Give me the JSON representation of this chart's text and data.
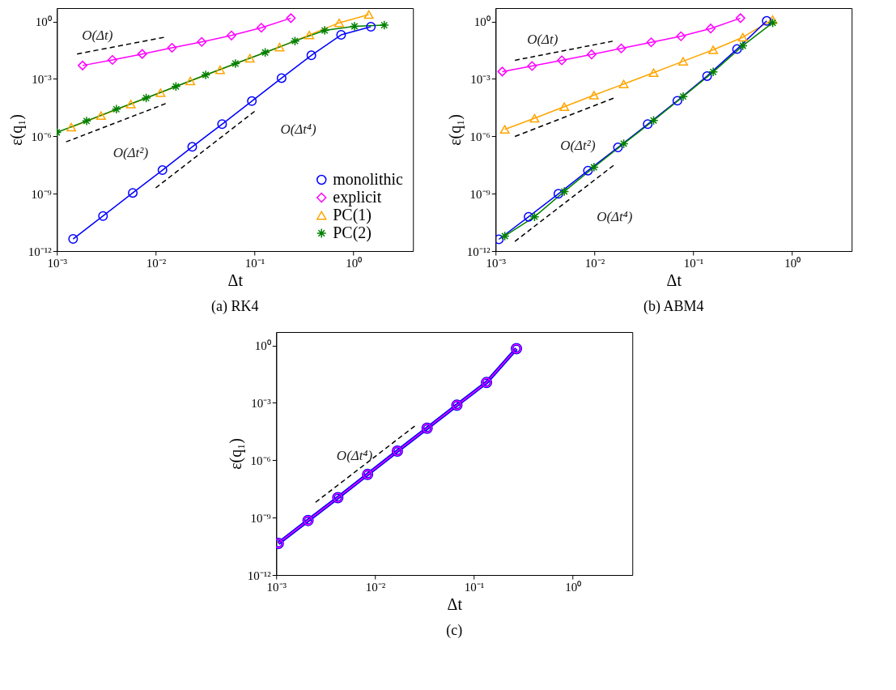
{
  "chart_data": [
    {
      "type": "line",
      "title": "(a) RK4",
      "xlabel": "Δt",
      "ylabel": "ε(q₁)",
      "log": "xy",
      "grid": false,
      "legend": "bottom right",
      "xlim": [
        0.001,
        4
      ],
      "ylim": [
        1e-12,
        5
      ],
      "xticks": [
        {
          "value": 0.001,
          "label": "10⁻³"
        },
        {
          "value": 0.01,
          "label": "10⁻²"
        },
        {
          "value": 0.1,
          "label": "10⁻¹"
        },
        {
          "value": 1,
          "label": "10⁰"
        }
      ],
      "yticks": [
        {
          "value": 1e-12,
          "label": "10⁻¹²"
        },
        {
          "value": 1e-09,
          "label": "10⁻⁹"
        },
        {
          "value": 1e-06,
          "label": "10⁻⁶"
        },
        {
          "value": 0.001,
          "label": "10⁻³"
        },
        {
          "value": 1,
          "label": "10⁰"
        }
      ],
      "series": [
        {
          "name": "monolithic",
          "color": "#0000ff",
          "marker": "circle",
          "x": [
            0.00146,
            0.00293,
            0.00586,
            0.0117,
            0.0234,
            0.0469,
            0.0938,
            0.1875,
            0.375,
            0.75,
            1.5
          ],
          "values": [
            4.3e-12,
            6.8e-11,
            1.1e-09,
            1.7e-08,
            2.8e-07,
            4.3e-06,
            6.9e-05,
            0.0011,
            0.017,
            0.2,
            0.53
          ]
        },
        {
          "name": "explicit",
          "color": "#ff00ff",
          "marker": "diamond",
          "x": [
            0.00182,
            0.00365,
            0.0073,
            0.0146,
            0.0292,
            0.0583,
            0.117,
            0.233
          ],
          "values": [
            0.005,
            0.0098,
            0.02,
            0.042,
            0.086,
            0.185,
            0.47,
            1.5
          ]
        },
        {
          "name": "PC(1)",
          "color": "#ffa500",
          "marker": "triangle",
          "x": [
            0.0014,
            0.0028,
            0.0056,
            0.0112,
            0.0224,
            0.0448,
            0.0896,
            0.179,
            0.358,
            0.717,
            1.43
          ],
          "values": [
            3e-06,
            1.2e-05,
            4.8e-05,
            0.00019,
            0.00078,
            0.003,
            0.012,
            0.046,
            0.197,
            0.85,
            2.3
          ]
        },
        {
          "name": "PC(2)",
          "color": "#008000",
          "marker": "cross",
          "x": [
            0.001,
            0.002,
            0.004,
            0.008,
            0.016,
            0.032,
            0.064,
            0.128,
            0.256,
            0.512,
            1.024,
            2.048
          ],
          "values": [
            1.6e-06,
            6.3e-06,
            2.6e-05,
            0.0001,
            0.0004,
            0.0016,
            0.0063,
            0.024,
            0.095,
            0.34,
            0.56,
            0.64
          ]
        },
        {
          "type": "line",
          "color": "#000000",
          "marker": "none",
          "line_style": "dashed",
          "x": [
            0.0016,
            0.0121
          ],
          "values": [
            0.02,
            0.148
          ]
        },
        {
          "type": "line",
          "color": "#000000",
          "marker": "none",
          "line_style": "dashed",
          "x": [
            0.00124,
            0.0126
          ],
          "values": [
            5.1e-07,
            5.1e-05
          ]
        },
        {
          "type": "line",
          "color": "#000000",
          "marker": "none",
          "line_style": "dashed",
          "x": [
            0.01,
            0.1
          ],
          "values": [
            2e-09,
            2e-05
          ]
        }
      ],
      "annotations": [
        "O(Δt)",
        "O(Δt²)",
        "O(Δt⁴)"
      ]
    },
    {
      "type": "line",
      "title": "(b) ABM4",
      "xlabel": "Δt",
      "ylabel": "ε(q₁)",
      "log": "xy",
      "grid": false,
      "xlim": [
        0.001,
        4
      ],
      "ylim": [
        1e-12,
        5
      ],
      "xticks": [
        {
          "value": 0.001,
          "label": "10⁻³"
        },
        {
          "value": 0.01,
          "label": "10⁻²"
        },
        {
          "value": 0.1,
          "label": "10⁻¹"
        },
        {
          "value": 1,
          "label": "10⁰"
        }
      ],
      "yticks": [
        {
          "value": 1e-12,
          "label": "10⁻¹²"
        },
        {
          "value": 1e-09,
          "label": "10⁻⁹"
        },
        {
          "value": 1e-06,
          "label": "10⁻⁶"
        },
        {
          "value": 0.001,
          "label": "10⁻³"
        },
        {
          "value": 1,
          "label": "10⁰"
        }
      ],
      "series": [
        {
          "color": "#ff00ff",
          "marker": "diamond",
          "x": [
            0.00117,
            0.00234,
            0.00468,
            0.00936,
            0.0187,
            0.0375,
            0.075,
            0.15,
            0.3
          ],
          "values": [
            0.0024,
            0.0047,
            0.0093,
            0.019,
            0.039,
            0.081,
            0.17,
            0.43,
            1.5
          ]
        },
        {
          "color": "#ffa500",
          "marker": "triangle",
          "x": [
            0.00124,
            0.00248,
            0.00496,
            0.0099,
            0.0198,
            0.0397,
            0.079,
            0.159,
            0.317,
            0.635
          ],
          "values": [
            2.3e-06,
            8.7e-06,
            3.5e-05,
            0.00014,
            0.00054,
            0.0021,
            0.0083,
            0.033,
            0.15,
            1.25
          ]
        },
        {
          "color": "#0000ff",
          "marker": "circle",
          "x": [
            0.00108,
            0.00216,
            0.00432,
            0.0086,
            0.0173,
            0.0346,
            0.069,
            0.138,
            0.277,
            0.553
          ],
          "values": [
            4.1e-12,
            6.2e-11,
            9.8e-10,
            1.6e-08,
            2.6e-07,
            4.3e-06,
            7.2e-05,
            0.0014,
            0.036,
            1.07
          ]
        },
        {
          "color": "#008000",
          "marker": "cross",
          "x": [
            0.00124,
            0.00248,
            0.00496,
            0.0099,
            0.0198,
            0.0397,
            0.079,
            0.159,
            0.317,
            0.635
          ],
          "values": [
            6.1e-12,
            6.2e-11,
            1.3e-09,
            2.4e-08,
            4.1e-07,
            6.7e-06,
            0.00012,
            0.0023,
            0.054,
            0.85
          ]
        },
        {
          "type": "line",
          "color": "#000000",
          "marker": "none",
          "line_style": "dashed",
          "x": [
            0.00157,
            0.0153
          ],
          "values": [
            0.0094,
            0.093
          ]
        },
        {
          "type": "line",
          "color": "#000000",
          "marker": "none",
          "line_style": "dashed",
          "x": [
            0.00157,
            0.0156
          ],
          "values": [
            9.8e-07,
            9.8e-05
          ]
        },
        {
          "type": "line",
          "color": "#000000",
          "marker": "none",
          "line_style": "dashed",
          "x": [
            0.00157,
            0.0156
          ],
          "values": [
            3.2e-12,
            3e-08
          ]
        }
      ],
      "annotations": [
        "O(Δt)",
        "O(Δt²)",
        "O(Δt⁴)"
      ]
    },
    {
      "type": "line",
      "title": "(c)",
      "xlabel": "Δt",
      "ylabel": "ε(q₁)",
      "log": "xy",
      "grid": false,
      "xlim": [
        0.001,
        4
      ],
      "ylim": [
        1e-12,
        5
      ],
      "xticks": [
        {
          "value": 0.001,
          "label": "10⁻³"
        },
        {
          "value": 0.01,
          "label": "10⁻²"
        },
        {
          "value": 0.1,
          "label": "10⁻¹"
        },
        {
          "value": 1,
          "label": "10⁰"
        }
      ],
      "yticks": [
        {
          "value": 1e-12,
          "label": "10⁻¹²"
        },
        {
          "value": 1e-09,
          "label": "10⁻⁹"
        },
        {
          "value": 1e-06,
          "label": "10⁻⁶"
        },
        {
          "value": 0.001,
          "label": "10⁻³"
        },
        {
          "value": 1,
          "label": "10⁰"
        }
      ],
      "series": [
        {
          "color": "#0000ff",
          "marker": "circle",
          "x": [
            0.00105,
            0.0021,
            0.0042,
            0.0084,
            0.0168,
            0.0336,
            0.0672,
            0.134,
            0.269
          ],
          "values": [
            4.5e-11,
            7.1e-10,
            1.1e-08,
            1.8e-07,
            3e-06,
            4.7e-05,
            0.00075,
            0.0115,
            0.68
          ]
        },
        {
          "color": "#ff00ff",
          "marker": "circle",
          "x": [
            0.00105,
            0.0021,
            0.0042,
            0.0084,
            0.0168,
            0.0336,
            0.0672,
            0.134,
            0.269
          ],
          "values": [
            4.5e-11,
            7.1e-10,
            1.1e-08,
            1.8e-07,
            3e-06,
            4.7e-05,
            0.00075,
            0.0115,
            0.68
          ]
        },
        {
          "type": "line",
          "color": "#000000",
          "marker": "none",
          "line_style": "dashed",
          "x": [
            0.0025,
            0.0252
          ],
          "values": [
            6.3e-09,
            6.1e-05
          ]
        }
      ],
      "annotations": [
        "O(Δt⁴)"
      ]
    }
  ]
}
